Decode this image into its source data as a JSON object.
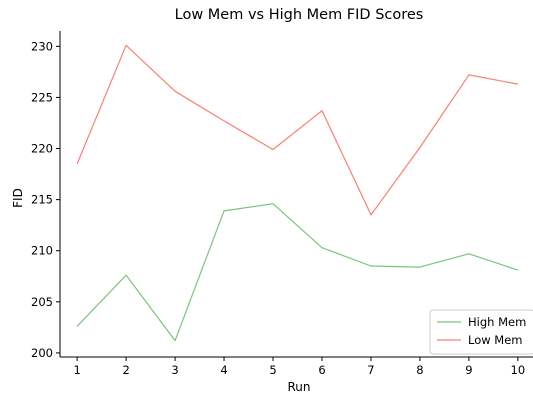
{
  "chart_data": {
    "type": "line",
    "title": "Low Mem vs High Mem FID Scores",
    "xlabel": "Run",
    "ylabel": "FID",
    "x": [
      1,
      2,
      3,
      4,
      5,
      6,
      7,
      8,
      9,
      10
    ],
    "xlim": [
      0.65,
      10.35
    ],
    "ylim": [
      199.6,
      231.5
    ],
    "yticks": [
      200,
      205,
      210,
      215,
      220,
      225,
      230
    ],
    "grid": false,
    "legend_position": "lower-right",
    "series": [
      {
        "name": "High Mem",
        "color": "#7cc47c",
        "values": [
          202.6,
          207.6,
          201.2,
          213.9,
          214.6,
          210.3,
          208.5,
          208.4,
          209.7,
          208.1
        ]
      },
      {
        "name": "Low Mem",
        "color": "#fa8072",
        "values": [
          218.5,
          230.1,
          225.6,
          222.7,
          219.9,
          223.7,
          213.5,
          220.1,
          227.2,
          226.3
        ]
      }
    ]
  }
}
